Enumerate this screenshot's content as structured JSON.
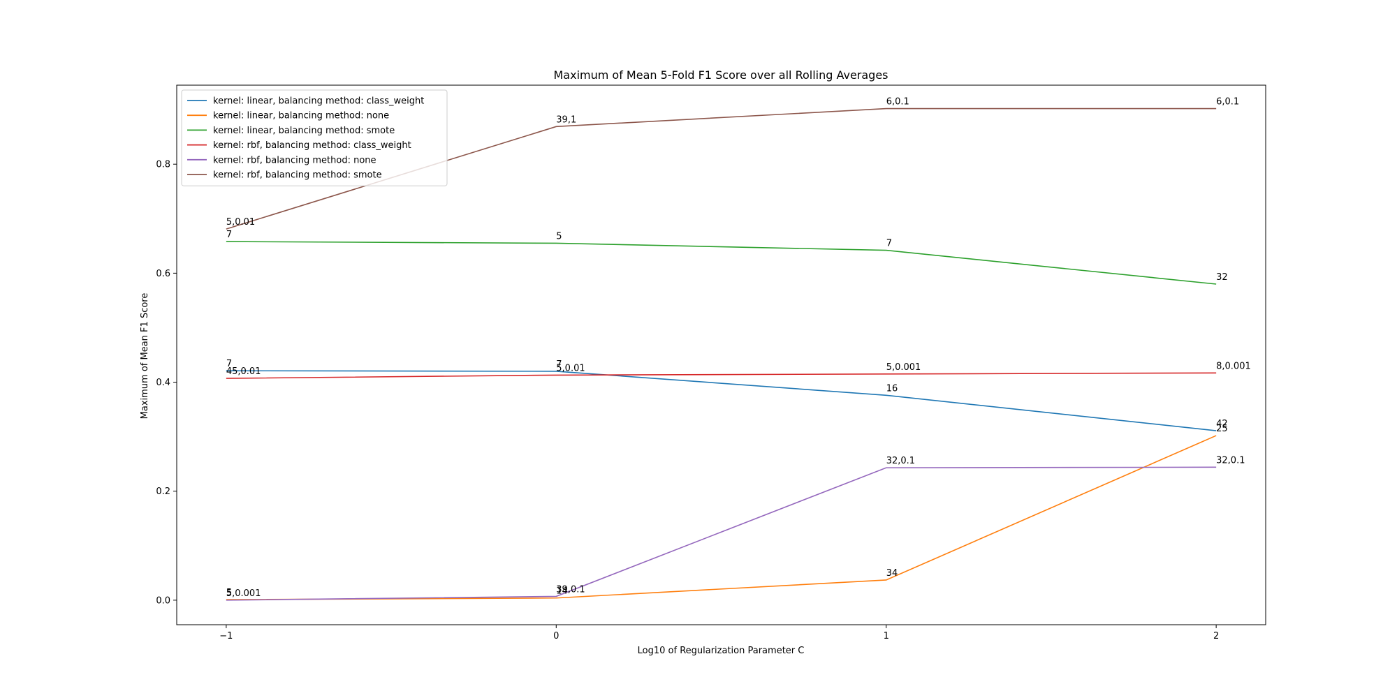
{
  "chart_data": {
    "type": "line",
    "title": "Maximum of Mean 5-Fold F1 Score over all Rolling Averages",
    "xlabel": "Log10 of Regularization Parameter C",
    "ylabel": "Maximum of Mean F1 Score",
    "x": [
      -1,
      0,
      1,
      2
    ],
    "xticks": [
      "−1",
      "0",
      "1",
      "2"
    ],
    "yticks": [
      "0.0",
      "0.2",
      "0.4",
      "0.6",
      "0.8"
    ],
    "xlim": [
      -1.15,
      2.15
    ],
    "ylim": [
      -0.045,
      0.945
    ],
    "grid": false,
    "legend_position": "top-left",
    "series": [
      {
        "name": "kernel: linear, balancing method: class_weight",
        "color": "#1f77b4",
        "values": [
          0.421,
          0.42,
          0.376,
          0.311
        ],
        "labels": [
          "7",
          "7",
          "16",
          "42"
        ]
      },
      {
        "name": "kernel: linear, balancing method: none",
        "color": "#ff7f0e",
        "values": [
          0.001,
          0.004,
          0.037,
          0.302
        ],
        "labels": [
          "5",
          "14",
          "34",
          "25"
        ]
      },
      {
        "name": "kernel: linear, balancing method: smote",
        "color": "#2ca02c",
        "values": [
          0.658,
          0.655,
          0.642,
          0.58
        ],
        "labels": [
          "7",
          "5",
          "7",
          "32"
        ]
      },
      {
        "name": "kernel: rbf, balancing method: class_weight",
        "color": "#d62728",
        "values": [
          0.407,
          0.413,
          0.415,
          0.417
        ],
        "labels": [
          "45,0.01",
          "5,0.01",
          "5,0.001",
          "8,0.001"
        ]
      },
      {
        "name": "kernel: rbf, balancing method: none",
        "color": "#9467bd",
        "values": [
          0.0,
          0.007,
          0.243,
          0.244
        ],
        "labels": [
          "5,0.001",
          "39,0.1",
          "32,0.1",
          "32,0.1"
        ]
      },
      {
        "name": "kernel: rbf, balancing method: smote",
        "color": "#8c564b",
        "values": [
          0.681,
          0.869,
          0.902,
          0.902
        ],
        "labels": [
          "5,0.01",
          "39,1",
          "6,0.1",
          "6,0.1"
        ]
      }
    ]
  }
}
